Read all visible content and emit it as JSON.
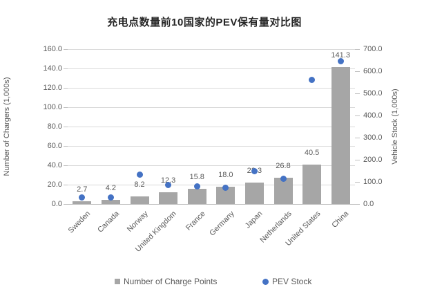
{
  "chart_data": {
    "type": "combo-bar-scatter",
    "title": "充电点数量前10国家的PEV保有量对比图",
    "categories": [
      "Sweden",
      "Canada",
      "Norway",
      "United Kingdom",
      "France",
      "Germany",
      "Japan",
      "Netherlands",
      "United States",
      "China"
    ],
    "series": [
      {
        "name": "Number of Charge Points",
        "type": "bar",
        "axis": "left",
        "color": "#a6a6a6",
        "values": [
          2.7,
          4.2,
          8.2,
          12.3,
          15.8,
          18.0,
          22.3,
          26.8,
          40.5,
          141.3
        ],
        "data_labels": [
          "2.7",
          "4.2",
          "8.2",
          "12.3",
          "15.8",
          "18.0",
          "22.3",
          "26.8",
          "40.5",
          "141.3"
        ]
      },
      {
        "name": "PEV Stock",
        "type": "scatter",
        "axis": "right",
        "color": "#4472c4",
        "values": [
          29,
          30,
          134,
          87,
          80,
          73,
          148,
          114,
          560,
          645
        ],
        "values_note": "estimated from gridlines; no data labels shown for this series"
      }
    ],
    "axes": {
      "left": {
        "title": "Number of Chargers (1,000s)",
        "min": 0,
        "max": 160,
        "step": 20,
        "tick_labels": [
          "0.0",
          "20.0",
          "40.0",
          "60.0",
          "80.0",
          "100.0",
          "120.0",
          "140.0",
          "160.0"
        ]
      },
      "right": {
        "title": "Vehicle Stock (1,000s)",
        "min": 0,
        "max": 700,
        "step": 100,
        "tick_labels": [
          "0.0",
          "100.0",
          "200.0",
          "300.0",
          "400.0",
          "500.0",
          "600.0",
          "700.0"
        ]
      }
    },
    "legend": {
      "position": "bottom",
      "items": [
        {
          "label": "Number of Charge Points",
          "marker": "square",
          "color": "#a6a6a6"
        },
        {
          "label": "PEV Stock",
          "marker": "circle",
          "color": "#4472c4"
        }
      ]
    },
    "grid": {
      "show": true,
      "color": "#d9d9d9",
      "axis_line_color": "#bfbfbf"
    },
    "colors": {
      "background": "#ffffff",
      "text": "#595959",
      "title_text": "#262626"
    }
  }
}
